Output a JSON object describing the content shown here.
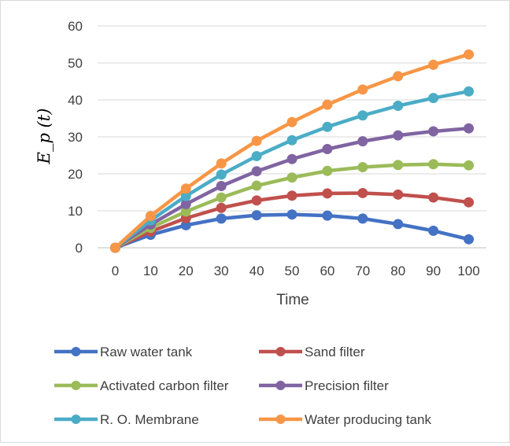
{
  "chart_data": {
    "type": "line",
    "title": "",
    "xlabel": "Time",
    "ylabel": "E_p (t)",
    "x": [
      0,
      10,
      20,
      30,
      40,
      50,
      60,
      70,
      80,
      90,
      100
    ],
    "x_tick_labels": [
      "0",
      "10",
      "20",
      "30",
      "40",
      "50",
      "60",
      "70",
      "80",
      "90",
      "100"
    ],
    "ylim": [
      0,
      60
    ],
    "y_ticks": [
      0,
      10,
      20,
      30,
      40,
      50,
      60
    ],
    "y_tick_labels": [
      "0",
      "10",
      "20",
      "30",
      "40",
      "50",
      "60"
    ],
    "grid": "horizontal",
    "legend_position": "bottom",
    "series": [
      {
        "name": "Raw water tank",
        "color": "#4472c4",
        "values": [
          0,
          3.5,
          6.1,
          7.9,
          8.8,
          9.0,
          8.7,
          7.9,
          6.4,
          4.6,
          2.3
        ]
      },
      {
        "name": "Sand filter",
        "color": "#c0504d",
        "values": [
          0,
          4.4,
          8.0,
          10.8,
          12.8,
          14.1,
          14.7,
          14.8,
          14.4,
          13.6,
          12.3
        ]
      },
      {
        "name": "Activated carbon filter",
        "color": "#9bbb59",
        "values": [
          0,
          5.4,
          9.8,
          13.6,
          16.8,
          19.0,
          20.8,
          21.8,
          22.4,
          22.6,
          22.3
        ]
      },
      {
        "name": "Precision filter",
        "color": "#8064a2",
        "values": [
          0,
          6.3,
          11.8,
          16.7,
          20.7,
          24.0,
          26.7,
          28.8,
          30.4,
          31.5,
          32.3
        ]
      },
      {
        "name": "R. O. Membrane",
        "color": "#4bacc6",
        "values": [
          0,
          7.4,
          14.0,
          19.8,
          24.8,
          29.1,
          32.7,
          35.8,
          38.4,
          40.5,
          42.3
        ]
      },
      {
        "name": "Water producing tank",
        "color": "#f79646",
        "values": [
          0,
          8.6,
          16.0,
          22.8,
          28.9,
          34.0,
          38.7,
          42.8,
          46.4,
          49.5,
          52.3
        ]
      }
    ]
  }
}
